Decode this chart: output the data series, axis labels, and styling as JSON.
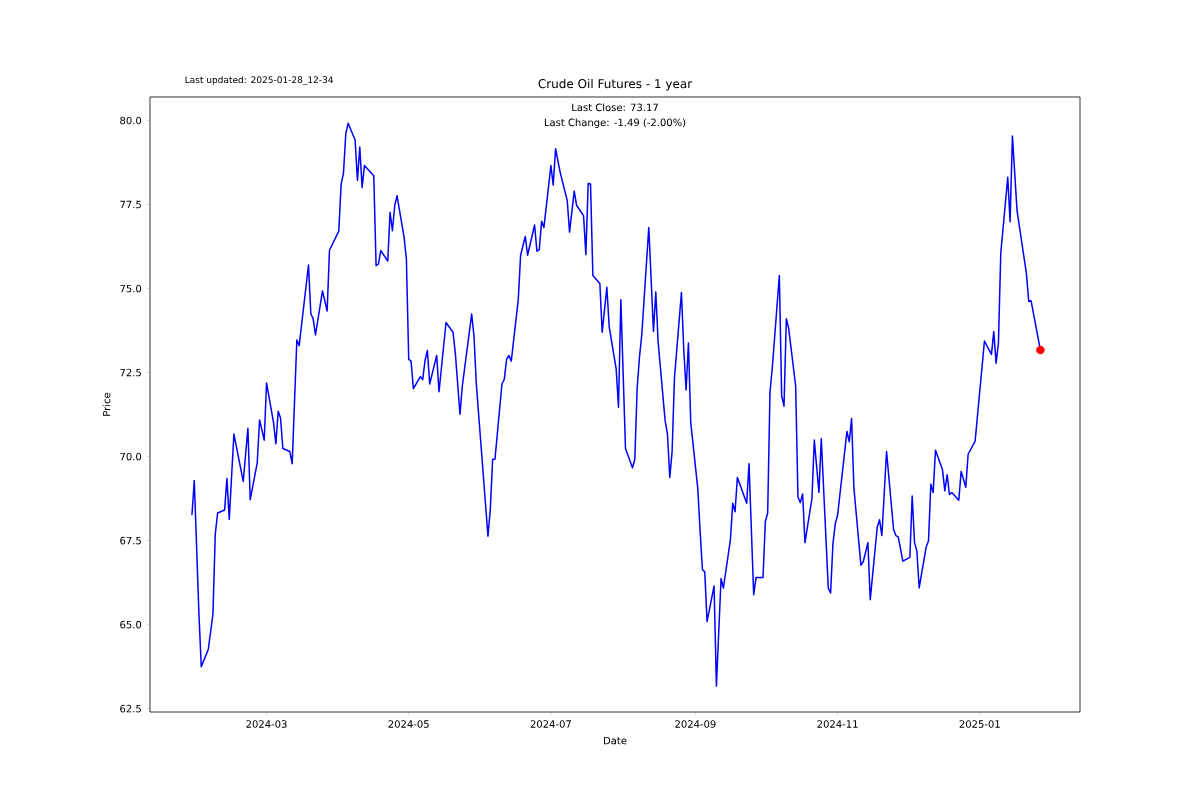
{
  "chart_data": {
    "type": "line",
    "title": "Crude Oil Futures - 1 year",
    "xlabel": "Date",
    "ylabel": "Price",
    "annotations": [
      "Last Close: 73.17",
      "Last Change: -1.49 (-2.00%)",
      "Last updated: 2025-01-28_12-34"
    ],
    "xlim": [
      "2024-01-11",
      "2025-02-13"
    ],
    "ylim": [
      62.4,
      80.7
    ],
    "xticks": [
      "2024-03",
      "2024-05",
      "2024-07",
      "2024-09",
      "2024-11",
      "2025-01"
    ],
    "yticks": [
      {
        "value": 62.5,
        "label": "62.5"
      },
      {
        "value": 65,
        "label": "65.0"
      },
      {
        "value": 67.5,
        "label": "67.5"
      },
      {
        "value": 70,
        "label": "70.0"
      },
      {
        "value": 72.5,
        "label": "72.5"
      },
      {
        "value": 75,
        "label": "75.0"
      },
      {
        "value": 77.5,
        "label": "77.5"
      },
      {
        "value": 80,
        "label": "80.0"
      }
    ],
    "series": [
      {
        "color": "#0000ff",
        "marker": "none",
        "x": [
          "2024-01-29",
          "2024-01-30",
          "2024-02-01",
          "2024-02-02",
          "2024-02-05",
          "2024-02-07",
          "2024-02-08",
          "2024-02-09",
          "2024-02-12",
          "2024-02-13",
          "2024-02-14",
          "2024-02-15",
          "2024-02-16",
          "2024-02-20",
          "2024-02-22",
          "2024-02-23",
          "2024-02-26",
          "2024-02-27",
          "2024-02-29",
          "2024-03-01",
          "2024-03-04",
          "2024-03-05",
          "2024-03-06",
          "2024-03-07",
          "2024-03-08",
          "2024-03-11",
          "2024-03-12",
          "2024-03-14",
          "2024-03-15",
          "2024-03-19",
          "2024-03-20",
          "2024-03-21",
          "2024-03-22",
          "2024-03-25",
          "2024-03-27",
          "2024-03-28",
          "2024-04-01",
          "2024-04-02",
          "2024-04-03",
          "2024-04-04",
          "2024-04-05",
          "2024-04-08",
          "2024-04-09",
          "2024-04-10",
          "2024-04-11",
          "2024-04-12",
          "2024-04-16",
          "2024-04-17",
          "2024-04-18",
          "2024-04-19",
          "2024-04-22",
          "2024-04-23",
          "2024-04-24",
          "2024-04-25",
          "2024-04-26",
          "2024-04-29",
          "2024-04-30",
          "2024-05-01",
          "2024-05-02",
          "2024-05-03",
          "2024-05-06",
          "2024-05-07",
          "2024-05-08",
          "2024-05-09",
          "2024-05-10",
          "2024-05-13",
          "2024-05-14",
          "2024-05-17",
          "2024-05-20",
          "2024-05-21",
          "2024-05-23",
          "2024-05-24",
          "2024-05-28",
          "2024-05-29",
          "2024-05-30",
          "2024-06-04",
          "2024-06-05",
          "2024-06-06",
          "2024-06-07",
          "2024-06-10",
          "2024-06-11",
          "2024-06-12",
          "2024-06-13",
          "2024-06-14",
          "2024-06-17",
          "2024-06-18",
          "2024-06-20",
          "2024-06-21",
          "2024-06-24",
          "2024-06-25",
          "2024-06-26",
          "2024-06-27",
          "2024-06-28",
          "2024-07-01",
          "2024-07-02",
          "2024-07-03",
          "2024-07-05",
          "2024-07-08",
          "2024-07-09",
          "2024-07-11",
          "2024-07-12",
          "2024-07-15",
          "2024-07-16",
          "2024-07-17",
          "2024-07-18",
          "2024-07-19",
          "2024-07-22",
          "2024-07-23",
          "2024-07-25",
          "2024-07-26",
          "2024-07-29",
          "2024-07-30",
          "2024-07-31",
          "2024-08-02",
          "2024-08-05",
          "2024-08-06",
          "2024-08-07",
          "2024-08-08",
          "2024-08-09",
          "2024-08-12",
          "2024-08-14",
          "2024-08-15",
          "2024-08-16",
          "2024-08-19",
          "2024-08-20",
          "2024-08-21",
          "2024-08-22",
          "2024-08-23",
          "2024-08-26",
          "2024-08-27",
          "2024-08-28",
          "2024-08-29",
          "2024-08-30",
          "2024-09-02",
          "2024-09-03",
          "2024-09-04",
          "2024-09-05",
          "2024-09-06",
          "2024-09-09",
          "2024-09-10",
          "2024-09-12",
          "2024-09-13",
          "2024-09-16",
          "2024-09-17",
          "2024-09-18",
          "2024-09-19",
          "2024-09-23",
          "2024-09-24",
          "2024-09-26",
          "2024-09-27",
          "2024-09-30",
          "2024-10-01",
          "2024-10-02",
          "2024-10-03",
          "2024-10-04",
          "2024-10-07",
          "2024-10-08",
          "2024-10-09",
          "2024-10-10",
          "2024-10-11",
          "2024-10-14",
          "2024-10-15",
          "2024-10-16",
          "2024-10-17",
          "2024-10-18",
          "2024-10-21",
          "2024-10-22",
          "2024-10-24",
          "2024-10-25",
          "2024-10-28",
          "2024-10-29",
          "2024-10-30",
          "2024-10-31",
          "2024-11-01",
          "2024-11-04",
          "2024-11-05",
          "2024-11-06",
          "2024-11-07",
          "2024-11-08",
          "2024-11-11",
          "2024-11-12",
          "2024-11-14",
          "2024-11-15",
          "2024-11-18",
          "2024-11-19",
          "2024-11-20",
          "2024-11-22",
          "2024-11-25",
          "2024-11-26",
          "2024-11-27",
          "2024-11-29",
          "2024-12-02",
          "2024-12-03",
          "2024-12-04",
          "2024-12-05",
          "2024-12-06",
          "2024-12-09",
          "2024-12-10",
          "2024-12-11",
          "2024-12-12",
          "2024-12-13",
          "2024-12-16",
          "2024-12-17",
          "2024-12-18",
          "2024-12-19",
          "2024-12-20",
          "2024-12-23",
          "2024-12-24",
          "2024-12-26",
          "2024-12-27",
          "2024-12-30",
          "2025-01-03",
          "2025-01-06",
          "2025-01-07",
          "2025-01-08",
          "2025-01-09",
          "2025-01-10",
          "2025-01-13",
          "2025-01-14",
          "2025-01-15",
          "2025-01-17",
          "2025-01-21",
          "2025-01-22",
          "2025-01-23",
          "2025-01-27"
        ],
        "values": [
          68.26,
          69.29,
          65.3,
          63.75,
          64.26,
          65.31,
          67.69,
          68.32,
          68.41,
          69.35,
          68.13,
          69.4,
          70.67,
          69.26,
          70.84,
          68.72,
          69.81,
          71.09,
          70.49,
          72.19,
          71.01,
          70.38,
          71.35,
          71.15,
          70.24,
          70.15,
          69.79,
          73.47,
          73.3,
          75.7,
          74.25,
          74.1,
          73.62,
          74.93,
          74.33,
          76.14,
          76.71,
          78.11,
          78.43,
          79.6,
          79.92,
          79.42,
          78.22,
          79.21,
          78.01,
          78.66,
          78.36,
          75.68,
          75.73,
          76.13,
          75.82,
          77.27,
          76.72,
          77.48,
          77.76,
          76.53,
          75.88,
          72.89,
          72.84,
          72.02,
          72.38,
          72.29,
          72.86,
          73.16,
          72.16,
          73.01,
          71.93,
          73.99,
          73.7,
          73.07,
          71.26,
          72.1,
          74.24,
          73.59,
          72.16,
          67.63,
          68.43,
          69.92,
          69.92,
          72.16,
          72.3,
          72.9,
          73.01,
          72.84,
          74.67,
          75.99,
          76.55,
          75.99,
          76.89,
          76.11,
          76.16,
          77.0,
          76.82,
          78.66,
          78.08,
          79.16,
          78.45,
          77.62,
          76.68,
          77.9,
          77.48,
          77.17,
          76.01,
          78.13,
          78.11,
          75.39,
          75.15,
          73.7,
          75.04,
          73.87,
          72.61,
          71.47,
          74.67,
          70.24,
          69.67,
          69.92,
          72.04,
          72.96,
          73.64,
          76.82,
          73.72,
          74.9,
          73.41,
          71.07,
          70.67,
          69.38,
          70.15,
          72.33,
          74.88,
          73.18,
          71.98,
          73.38,
          71.01,
          69.06,
          67.8,
          66.64,
          66.57,
          65.09,
          66.15,
          63.17,
          66.37,
          66.09,
          67.52,
          68.61,
          68.36,
          69.38,
          68.61,
          69.79,
          65.89,
          66.4,
          66.4,
          68.07,
          68.32,
          71.93,
          72.65,
          75.39,
          71.81,
          71.5,
          74.1,
          73.82,
          72.1,
          68.8,
          68.63,
          68.89,
          67.44,
          68.76,
          70.49,
          68.93,
          70.53,
          66.09,
          65.94,
          67.41,
          68.0,
          68.26,
          70.12,
          70.75,
          70.44,
          71.13,
          69.06,
          66.77,
          66.87,
          67.44,
          65.74,
          67.9,
          68.12,
          67.65,
          70.15,
          67.84,
          67.65,
          67.61,
          66.89,
          67.0,
          68.83,
          67.44,
          67.2,
          66.09,
          67.31,
          67.49,
          69.18,
          68.93,
          70.19,
          69.61,
          68.98,
          69.46,
          68.87,
          68.93,
          68.7,
          69.56,
          69.09,
          70.07,
          70.46,
          73.44,
          73.04,
          73.72,
          72.78,
          73.38,
          76.05,
          78.31,
          76.99,
          79.54,
          77.31,
          75.45,
          74.62,
          74.64,
          73.17
        ]
      },
      {
        "type": "scatter",
        "color": "#ff0000",
        "marker": "circle",
        "x": [
          "2025-01-27"
        ],
        "values": [
          73.17
        ]
      }
    ]
  }
}
